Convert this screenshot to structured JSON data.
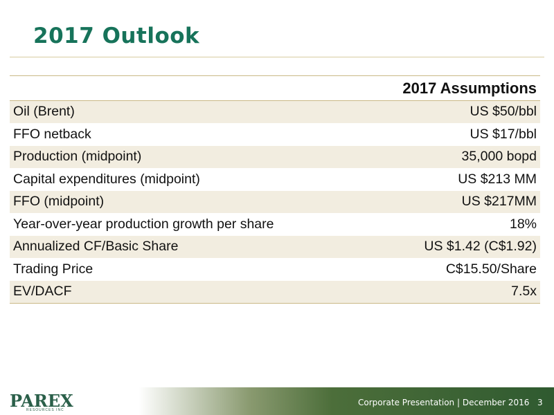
{
  "header": {
    "title": "2017 Outlook"
  },
  "table": {
    "header": "2017 Assumptions",
    "rows": [
      [
        "Oil (Brent)",
        "US $50/bbl"
      ],
      [
        "FFO netback",
        "US $17/bbl"
      ],
      [
        "Production (midpoint)",
        "35,000 bopd"
      ],
      [
        "Capital expenditures (midpoint)",
        "US $213 MM"
      ],
      [
        "FFO (midpoint)",
        "US $217MM"
      ],
      [
        "Year-over-year production growth per share",
        "18%"
      ],
      [
        "Annualized CF/Basic Share",
        "US $1.42 (C$1.92)"
      ],
      [
        "Trading Price",
        "C$15.50/Share"
      ],
      [
        "EV/DACF",
        "7.5x"
      ]
    ]
  },
  "footer": {
    "logo": "PAREX",
    "logo_sub": "RESOURCES INC",
    "text": "Corporate Presentation | December 2016",
    "page": "3"
  }
}
